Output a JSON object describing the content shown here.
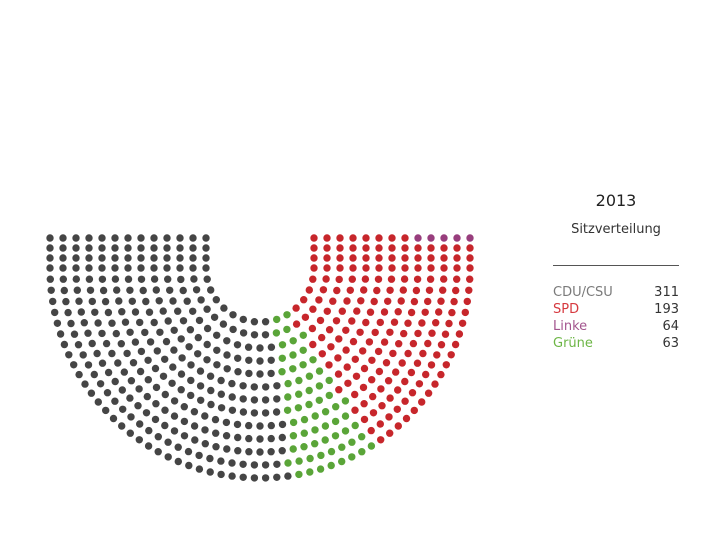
{
  "chart_data": {
    "type": "parliament",
    "title": "2013",
    "subtitle": "Sitzverteilung",
    "total_seats": 631,
    "series": [
      {
        "name": "CDU/CSU",
        "value": 311,
        "color": "#454545"
      },
      {
        "name": "Grüne",
        "value": 63,
        "color": "#5aa538"
      },
      {
        "name": "SPD",
        "value": 193,
        "color": "#c7262b"
      },
      {
        "name": "Linke",
        "value": 64,
        "color": "#983e7d"
      }
    ],
    "legend": [
      {
        "name": "CDU/CSU",
        "value": "311",
        "color": "#7a7a7a"
      },
      {
        "name": "SPD",
        "value": "193",
        "color": "#d6393f"
      },
      {
        "name": "Linke",
        "value": "64",
        "color": "#a3558e"
      },
      {
        "name": "Grüne",
        "value": "63",
        "color": "#6db646"
      }
    ],
    "legend_position": "right"
  }
}
